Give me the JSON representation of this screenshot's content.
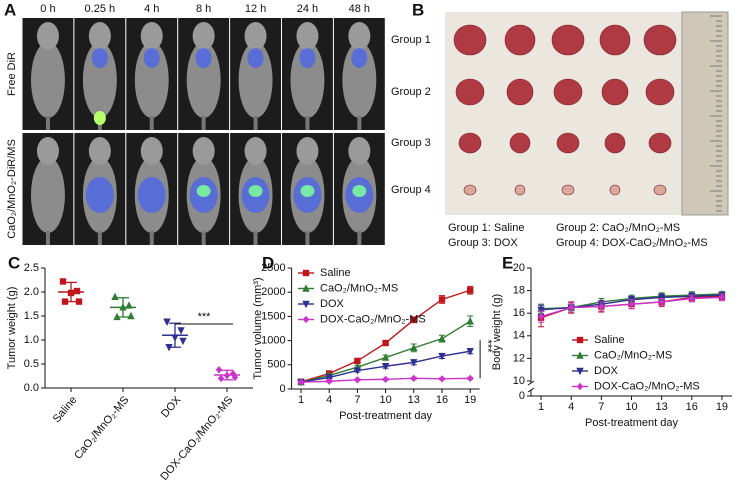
{
  "panels": {
    "A": {
      "label": "A",
      "times": [
        "0 h",
        "0.25 h",
        "4 h",
        "8 h",
        "12 h",
        "24 h",
        "48 h"
      ],
      "rows": [
        "Free DiR",
        "CaO₂/MnO₂-DiR/MS"
      ]
    },
    "B": {
      "label": "B",
      "groups": [
        "Group 1",
        "Group 2",
        "Group 3",
        "Group 4"
      ],
      "legend": [
        "Group 1: Saline",
        "Group 2: CaO₂/MnO₂-MS",
        "Group 3: DOX",
        "Group 4: DOX-CaO₂/MnO₂-MS"
      ]
    }
  },
  "chart_data": [
    {
      "label": "C",
      "type": "dot",
      "ylabel": "Tumor weight (g)",
      "categories": [
        "Saline",
        "CaO₂/MnO₂-MS",
        "DOX",
        "DOX-CaO₂/MnO₂-MS"
      ],
      "colors": [
        "#c0151b",
        "#2e7d32",
        "#2e3192",
        "#cc33cc"
      ],
      "points": [
        [
          2.22,
          2.02,
          1.98,
          1.8,
          1.8
        ],
        [
          1.9,
          1.72,
          1.68,
          1.5,
          1.48
        ],
        [
          1.38,
          1.2,
          1.05,
          0.98,
          0.85
        ],
        [
          0.38,
          0.3,
          0.26,
          0.22,
          0.2
        ]
      ],
      "means": [
        2.0,
        1.68,
        1.1,
        0.27
      ],
      "sd": [
        0.2,
        0.2,
        0.25,
        0.1
      ],
      "ylim": [
        0,
        2.5
      ],
      "yticks": [
        {
          "value": 0,
          "label": "0.0"
        },
        0.5,
        {
          "value": 1,
          "label": "1.0"
        },
        1.5,
        {
          "value": 2,
          "label": "2.0"
        },
        2.5
      ],
      "annotation": "***"
    },
    {
      "label": "D",
      "type": "line",
      "ylabel": "Tumor volume (mm³)",
      "xlabel": "Post-treatment day",
      "x": [
        1,
        4,
        7,
        10,
        13,
        16,
        19
      ],
      "xlim": [
        0,
        20
      ],
      "xticks": [
        1,
        4,
        7,
        10,
        13,
        16,
        19
      ],
      "ylim": [
        0,
        2500
      ],
      "yticks": [
        0,
        500,
        1000,
        1500,
        2000,
        2500
      ],
      "series": [
        {
          "name": "Saline",
          "color": "#c0151b",
          "values": [
            150,
            320,
            580,
            950,
            1430,
            1850,
            2040
          ],
          "errors": [
            20,
            30,
            40,
            50,
            60,
            80,
            80
          ]
        },
        {
          "name": "CaO₂/MnO₂-MS",
          "color": "#2e7d32",
          "values": [
            140,
            280,
            450,
            650,
            850,
            1040,
            1400
          ],
          "errors": [
            20,
            30,
            40,
            50,
            80,
            70,
            110
          ]
        },
        {
          "name": "DOX",
          "color": "#2e3192",
          "values": [
            140,
            240,
            380,
            470,
            550,
            680,
            780
          ],
          "errors": [
            20,
            30,
            30,
            40,
            50,
            50,
            50
          ]
        },
        {
          "name": "DOX-CaO₂/MnO₂-MS",
          "color": "#cc33cc",
          "values": [
            140,
            160,
            190,
            200,
            220,
            210,
            220
          ],
          "errors": [
            20,
            20,
            20,
            20,
            20,
            20,
            20
          ]
        }
      ],
      "annotation": "***"
    },
    {
      "label": "E",
      "type": "line",
      "ylabel": "Body weight (g)",
      "xlabel": "Post-treatment day",
      "x": [
        1,
        4,
        7,
        10,
        13,
        16,
        19
      ],
      "xlim": [
        0,
        20
      ],
      "xticks": [
        1,
        4,
        7,
        10,
        13,
        16,
        19
      ],
      "ylim": [
        0,
        20
      ],
      "axis_break": [
        0,
        10
      ],
      "yticks": [
        0,
        10,
        12,
        14,
        16,
        18,
        20
      ],
      "series": [
        {
          "name": "Saline",
          "color": "#c0151b",
          "values": [
            15.6,
            16.5,
            16.6,
            16.8,
            17.0,
            17.4,
            17.5
          ],
          "errors": [
            0.8,
            0.5,
            0.5,
            0.4,
            0.4,
            0.3,
            0.3
          ]
        },
        {
          "name": "CaO₂/MnO₂-MS",
          "color": "#2e7d32",
          "values": [
            16.4,
            16.5,
            17.0,
            17.3,
            17.5,
            17.6,
            17.7
          ],
          "errors": [
            0.4,
            0.4,
            0.3,
            0.3,
            0.3,
            0.3,
            0.2
          ]
        },
        {
          "name": "DOX",
          "color": "#2e3192",
          "values": [
            16.3,
            16.5,
            16.8,
            17.2,
            17.4,
            17.5,
            17.6
          ],
          "errors": [
            0.4,
            0.4,
            0.3,
            0.3,
            0.3,
            0.3,
            0.2
          ]
        },
        {
          "name": "DOX-CaO₂/MnO₂-MS",
          "color": "#cc33cc",
          "values": [
            15.7,
            16.5,
            16.6,
            16.8,
            17.0,
            17.3,
            17.4
          ],
          "errors": [
            0.5,
            0.4,
            0.4,
            0.4,
            0.3,
            0.3,
            0.3
          ]
        }
      ]
    }
  ]
}
